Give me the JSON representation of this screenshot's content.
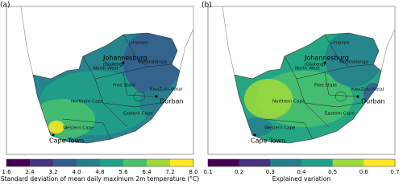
{
  "panels": [
    {
      "label": "(a)",
      "places": [
        "Johannesburg",
        "(Gauteng)",
        "Durban",
        "Cape Town"
      ],
      "provinces": [
        "Limpopo",
        "North West",
        "Mpumalanga",
        "Free State",
        "KwaZulu-Natal",
        "Northern Cape",
        "Eastern Cape",
        "Western Cape"
      ],
      "colorbar": {
        "ticks": [
          "1.6",
          "2.4",
          "3.2",
          "4.0",
          "4.8",
          "5.6",
          "6.4",
          "7.2",
          "8.0"
        ],
        "label": "Standard deviation of mean daily maximum 2m temperature (°C)"
      }
    },
    {
      "label": "(b)",
      "places": [
        "Johannesburg",
        "(Gauteng)",
        "Durban",
        "Cape Town"
      ],
      "provinces": [
        "Limpopo",
        "North West",
        "Mpumalanga",
        "Free State",
        "KwaZulu-Natal",
        "Northern Cape",
        "Eastern Cape",
        "Western Cape"
      ],
      "colorbar": {
        "ticks": [
          "0.1",
          "0.2",
          "0.3",
          "0.4",
          "0.5",
          "0.6",
          "0.7"
        ],
        "label": "Explained variation"
      }
    }
  ]
}
